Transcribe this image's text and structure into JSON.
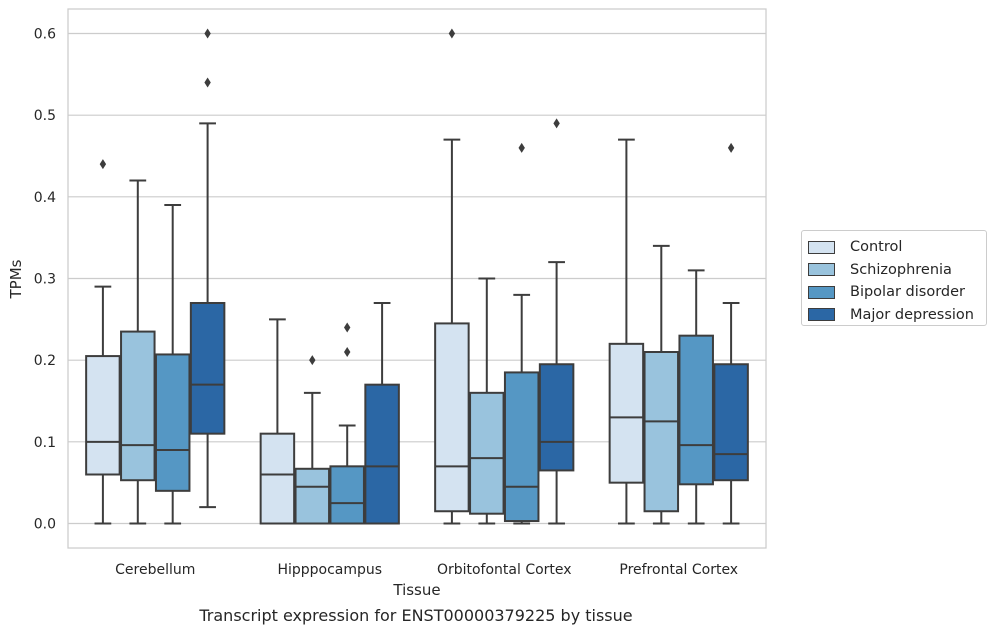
{
  "chart_data": {
    "type": "box",
    "xlabel": "Tissue",
    "ylabel": "TPMs",
    "caption": "Transcript expression for ENST00000379225 by tissue",
    "ylim": [
      -0.03,
      0.63
    ],
    "yticks": [
      "0.0",
      "0.1",
      "0.2",
      "0.3",
      "0.4",
      "0.5",
      "0.6"
    ],
    "grid": "horizontal",
    "legend_position": "right",
    "categories": [
      "Cerebellum",
      "Hipppocampus",
      "Orbitofontal Cortex",
      "Prefrontal Cortex"
    ],
    "series": [
      {
        "name": "Control",
        "color": "#d4e3f1",
        "boxes": [
          {
            "whislo": 0.0,
            "q1": 0.06,
            "med": 0.1,
            "q3": 0.205,
            "whishi": 0.29,
            "fliers": [
              0.44
            ]
          },
          {
            "whislo": 0.0,
            "q1": 0.0,
            "med": 0.06,
            "q3": 0.11,
            "whishi": 0.25,
            "fliers": []
          },
          {
            "whislo": 0.0,
            "q1": 0.015,
            "med": 0.07,
            "q3": 0.245,
            "whishi": 0.47,
            "fliers": [
              0.6
            ]
          },
          {
            "whislo": 0.0,
            "q1": 0.05,
            "med": 0.13,
            "q3": 0.22,
            "whishi": 0.47,
            "fliers": []
          }
        ]
      },
      {
        "name": "Schizophrenia",
        "color": "#99c3dd",
        "boxes": [
          {
            "whislo": 0.0,
            "q1": 0.053,
            "med": 0.096,
            "q3": 0.235,
            "whishi": 0.42,
            "fliers": []
          },
          {
            "whislo": 0.0,
            "q1": 0.0,
            "med": 0.045,
            "q3": 0.067,
            "whishi": 0.16,
            "fliers": [
              0.2
            ]
          },
          {
            "whislo": 0.0,
            "q1": 0.012,
            "med": 0.08,
            "q3": 0.16,
            "whishi": 0.3,
            "fliers": []
          },
          {
            "whislo": 0.0,
            "q1": 0.015,
            "med": 0.125,
            "q3": 0.21,
            "whishi": 0.34,
            "fliers": []
          }
        ]
      },
      {
        "name": "Bipolar disorder",
        "color": "#5597c4",
        "boxes": [
          {
            "whislo": 0.0,
            "q1": 0.04,
            "med": 0.09,
            "q3": 0.207,
            "whishi": 0.39,
            "fliers": []
          },
          {
            "whislo": 0.0,
            "q1": 0.0,
            "med": 0.025,
            "q3": 0.07,
            "whishi": 0.12,
            "fliers": [
              0.21,
              0.24
            ]
          },
          {
            "whislo": 0.0,
            "q1": 0.003,
            "med": 0.045,
            "q3": 0.185,
            "whishi": 0.28,
            "fliers": [
              0.46
            ]
          },
          {
            "whislo": 0.0,
            "q1": 0.048,
            "med": 0.096,
            "q3": 0.23,
            "whishi": 0.31,
            "fliers": []
          }
        ]
      },
      {
        "name": "Major depression",
        "color": "#2b67a5",
        "boxes": [
          {
            "whislo": 0.02,
            "q1": 0.11,
            "med": 0.17,
            "q3": 0.27,
            "whishi": 0.49,
            "fliers": [
              0.54,
              0.6
            ]
          },
          {
            "whislo": 0.0,
            "q1": 0.0,
            "med": 0.07,
            "q3": 0.17,
            "whishi": 0.27,
            "fliers": []
          },
          {
            "whislo": 0.0,
            "q1": 0.065,
            "med": 0.1,
            "q3": 0.195,
            "whishi": 0.32,
            "fliers": [
              0.49
            ]
          },
          {
            "whislo": 0.0,
            "q1": 0.053,
            "med": 0.085,
            "q3": 0.195,
            "whishi": 0.27,
            "fliers": [
              0.46
            ]
          }
        ]
      }
    ]
  }
}
